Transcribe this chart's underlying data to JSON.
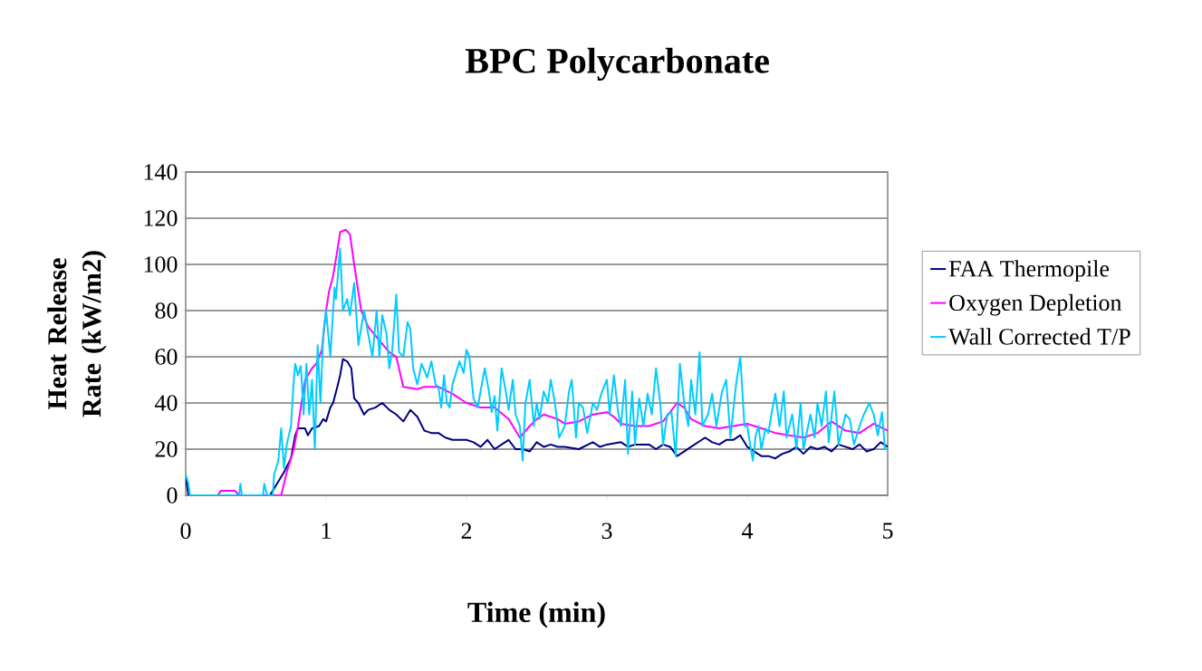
{
  "chart_data": {
    "type": "line",
    "title": "BPC Polycarbonate",
    "xlabel": "Time (min)",
    "ylabel": "Heat Release Rate (kW/m2)",
    "xlim": [
      0,
      5
    ],
    "xticks": [
      0,
      1,
      2,
      3,
      4,
      5
    ],
    "ylim": [
      0,
      140
    ],
    "yticks": [
      0,
      20,
      40,
      60,
      80,
      100,
      120,
      140
    ],
    "grid": "y",
    "legend": "right",
    "series": [
      {
        "name": "FAA Thermopile",
        "color": "#000080",
        "x": [
          0,
          0.02,
          0.6,
          0.65,
          0.7,
          0.75,
          0.78,
          0.8,
          0.85,
          0.87,
          0.9,
          0.95,
          0.98,
          1.0,
          1.03,
          1.05,
          1.08,
          1.1,
          1.12,
          1.15,
          1.18,
          1.2,
          1.23,
          1.27,
          1.3,
          1.35,
          1.4,
          1.45,
          1.5,
          1.55,
          1.6,
          1.65,
          1.7,
          1.75,
          1.8,
          1.85,
          1.9,
          2.0,
          2.05,
          2.1,
          2.15,
          2.2,
          2.25,
          2.3,
          2.35,
          2.4,
          2.45,
          2.5,
          2.55,
          2.6,
          2.65,
          2.7,
          2.8,
          2.9,
          2.95,
          3.0,
          3.1,
          3.15,
          3.2,
          3.3,
          3.35,
          3.4,
          3.45,
          3.5,
          3.55,
          3.6,
          3.7,
          3.75,
          3.8,
          3.85,
          3.9,
          3.95,
          4.0,
          4.05,
          4.1,
          4.15,
          4.2,
          4.25,
          4.3,
          4.35,
          4.4,
          4.45,
          4.5,
          4.55,
          4.6,
          4.65,
          4.7,
          4.75,
          4.8,
          4.85,
          4.9,
          4.95,
          5.0
        ],
        "values": [
          8,
          0,
          0,
          5,
          10,
          16,
          26,
          29,
          29,
          26,
          29,
          30,
          33,
          32,
          38,
          40,
          47,
          52,
          59,
          58,
          55,
          42,
          40,
          35,
          37,
          38,
          40,
          37,
          35,
          32,
          37,
          34,
          28,
          27,
          27,
          25,
          24,
          24,
          23,
          21,
          24,
          20,
          22,
          24,
          20,
          20,
          19,
          23,
          21,
          22,
          21,
          21,
          20,
          23,
          21,
          22,
          23,
          21,
          22,
          22,
          20,
          22,
          21,
          17,
          19,
          21,
          25,
          23,
          22,
          24,
          24,
          26,
          21,
          19,
          17,
          17,
          16,
          18,
          19,
          21,
          18,
          21,
          20,
          21,
          19,
          22,
          21,
          20,
          22,
          19,
          20,
          23,
          21
        ]
      },
      {
        "name": "Oxygen Depletion",
        "color": "#ff00ff",
        "x": [
          0.23,
          0.25,
          0.35,
          0.38,
          0.68,
          0.72,
          0.77,
          0.8,
          0.85,
          0.9,
          0.93,
          0.97,
          1.0,
          1.02,
          1.05,
          1.08,
          1.1,
          1.14,
          1.17,
          1.2,
          1.25,
          1.3,
          1.38,
          1.45,
          1.5,
          1.55,
          1.65,
          1.7,
          1.8,
          1.9,
          2.0,
          2.1,
          2.2,
          2.3,
          2.38,
          2.45,
          2.5,
          2.55,
          2.65,
          2.7,
          2.8,
          2.9,
          3.0,
          3.05,
          3.1,
          3.2,
          3.3,
          3.4,
          3.5,
          3.55,
          3.6,
          3.7,
          3.8,
          3.9,
          4.0,
          4.1,
          4.2,
          4.3,
          4.4,
          4.5,
          4.6,
          4.7,
          4.8,
          4.9,
          5.0
        ],
        "values": [
          0,
          2,
          2,
          0,
          0,
          10,
          20,
          30,
          50,
          55,
          57,
          63,
          80,
          88,
          95,
          106,
          114,
          115,
          113,
          100,
          80,
          73,
          67,
          62,
          60,
          47,
          46,
          47,
          47,
          44,
          40,
          38,
          38,
          33,
          25,
          30,
          33,
          35,
          33,
          31,
          32,
          35,
          36,
          34,
          31,
          30,
          30,
          32,
          40,
          38,
          33,
          30,
          29,
          30,
          31,
          29,
          27,
          26,
          25,
          27,
          32,
          28,
          27,
          31,
          28
        ]
      },
      {
        "name": "Wall Corrected T/P",
        "color": "#00ccff",
        "x": [
          0,
          0.02,
          0.03,
          0.38,
          0.39,
          0.4,
          0.55,
          0.56,
          0.58,
          0.62,
          0.63,
          0.66,
          0.68,
          0.7,
          0.72,
          0.75,
          0.77,
          0.78,
          0.8,
          0.82,
          0.84,
          0.86,
          0.88,
          0.9,
          0.92,
          0.94,
          0.96,
          0.98,
          1.0,
          1.03,
          1.06,
          1.07,
          1.1,
          1.12,
          1.15,
          1.17,
          1.2,
          1.23,
          1.27,
          1.3,
          1.33,
          1.36,
          1.38,
          1.4,
          1.43,
          1.45,
          1.47,
          1.5,
          1.52,
          1.55,
          1.58,
          1.6,
          1.62,
          1.65,
          1.68,
          1.72,
          1.75,
          1.78,
          1.8,
          1.82,
          1.84,
          1.86,
          1.88,
          1.9,
          1.95,
          1.98,
          2.0,
          2.02,
          2.05,
          2.08,
          2.1,
          2.13,
          2.16,
          2.18,
          2.2,
          2.22,
          2.25,
          2.28,
          2.3,
          2.33,
          2.35,
          2.38,
          2.4,
          2.42,
          2.45,
          2.48,
          2.5,
          2.52,
          2.55,
          2.58,
          2.6,
          2.63,
          2.66,
          2.7,
          2.73,
          2.75,
          2.78,
          2.8,
          2.83,
          2.86,
          2.9,
          2.93,
          2.96,
          3.0,
          3.02,
          3.05,
          3.08,
          3.1,
          3.13,
          3.15,
          3.18,
          3.2,
          3.23,
          3.26,
          3.29,
          3.32,
          3.35,
          3.38,
          3.4,
          3.43,
          3.46,
          3.49,
          3.52,
          3.55,
          3.58,
          3.6,
          3.63,
          3.66,
          3.68,
          3.72,
          3.75,
          3.78,
          3.82,
          3.85,
          3.88,
          3.92,
          3.95,
          3.98,
          4.0,
          4.02,
          4.04,
          4.06,
          4.08,
          4.1,
          4.13,
          4.15,
          4.18,
          4.2,
          4.23,
          4.26,
          4.28,
          4.32,
          4.35,
          4.38,
          4.4,
          4.45,
          4.48,
          4.5,
          4.53,
          4.56,
          4.58,
          4.62,
          4.65,
          4.7,
          4.73,
          4.76,
          4.8,
          4.83,
          4.87,
          4.9,
          4.93,
          4.96,
          4.98,
          5.0
        ],
        "values": [
          9,
          5,
          0,
          0,
          5,
          0,
          0,
          5,
          0,
          0,
          9,
          15,
          29,
          12,
          22,
          30,
          50,
          57,
          52,
          56,
          35,
          57,
          35,
          50,
          20,
          65,
          40,
          70,
          80,
          60,
          90,
          85,
          107,
          80,
          85,
          78,
          92,
          65,
          80,
          70,
          60,
          80,
          60,
          78,
          70,
          55,
          62,
          87,
          62,
          60,
          75,
          72,
          55,
          48,
          57,
          51,
          58,
          48,
          47,
          38,
          52,
          40,
          38,
          48,
          58,
          53,
          63,
          60,
          42,
          38,
          45,
          55,
          45,
          36,
          43,
          28,
          55,
          45,
          37,
          50,
          35,
          30,
          15,
          40,
          50,
          30,
          40,
          33,
          45,
          40,
          50,
          40,
          25,
          30,
          45,
          50,
          25,
          40,
          38,
          27,
          40,
          37,
          44,
          50,
          35,
          52,
          36,
          30,
          50,
          18,
          45,
          22,
          42,
          30,
          44,
          35,
          55,
          40,
          22,
          35,
          36,
          17,
          57,
          40,
          30,
          50,
          35,
          62,
          30,
          35,
          44,
          30,
          45,
          50,
          25,
          48,
          60,
          30,
          30,
          22,
          15,
          26,
          30,
          20,
          29,
          27,
          38,
          44,
          30,
          45,
          25,
          35,
          20,
          40,
          20,
          35,
          25,
          40,
          30,
          45,
          23,
          45,
          22,
          35,
          33,
          22,
          30,
          35,
          40,
          35,
          26,
          36,
          20,
          20
        ]
      }
    ]
  }
}
